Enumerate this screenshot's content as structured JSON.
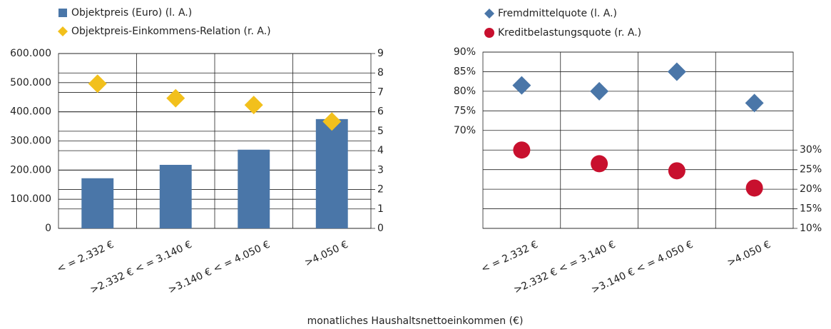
{
  "chart_data": [
    {
      "type": "combo",
      "categories": [
        "< = 2.332 €",
        ">2.332 € < = 3.140 €",
        ">3.140 € < = 4.050 €",
        ">4.050  €"
      ],
      "series": [
        {
          "name": "Objektpreis (Euro) (l. A.)",
          "type": "bar",
          "marker": "square",
          "color": "#4a76a8",
          "values": [
            172000,
            218000,
            270000,
            375000
          ]
        },
        {
          "name": "Objektpreis-Einkommens-Relation  (r. A.)",
          "type": "scatter",
          "marker": "diamond",
          "color": "#f2c01c",
          "axis": "y2",
          "values": [
            7.45,
            6.7,
            6.35,
            5.5
          ]
        }
      ],
      "ylim": [
        0,
        600000
      ],
      "yticks": [
        0,
        {
          "value": 100000,
          "label": "100.000"
        },
        {
          "value": 200000,
          "label": "200.000"
        },
        {
          "value": 300000,
          "label": "300.000"
        },
        {
          "value": 400000,
          "label": "400.000"
        },
        {
          "value": 500000,
          "label": "500.000"
        },
        {
          "value": 600000,
          "label": "600.000"
        }
      ],
      "y2lim": [
        0,
        9
      ],
      "y2ticks": [
        0,
        1,
        2,
        3,
        4,
        5,
        6,
        7,
        8,
        9
      ],
      "grid": true
    },
    {
      "type": "combo",
      "categories": [
        "< = 2.332 €",
        ">2.332 € < = 3.140 €",
        ">3.140 € < = 4.050 €",
        ">4.050  €"
      ],
      "series": [
        {
          "name": "Fremdmittelquote (l. A.)",
          "type": "scatter",
          "marker": "diamond",
          "color": "#4a76a8",
          "values": [
            81.5,
            80,
            85,
            77
          ]
        },
        {
          "name": "Kreditbelastungsquote (r. A.)",
          "type": "scatter",
          "marker": "circle",
          "color": "#c8102e",
          "axis": "y2",
          "values": [
            30,
            26.5,
            24.7,
            20.3
          ]
        }
      ],
      "ylim": [
        45,
        90
      ],
      "yticks": [
        {
          "value": 70,
          "label": "70%"
        },
        {
          "value": 75,
          "label": "75%"
        },
        {
          "value": 80,
          "label": "80%"
        },
        {
          "value": 85,
          "label": "85%"
        },
        {
          "value": 90,
          "label": "90%"
        }
      ],
      "y2lim": [
        10,
        55
      ],
      "y2ticks": [
        {
          "value": 10,
          "label": "10%"
        },
        {
          "value": 15,
          "label": "15%"
        },
        {
          "value": 20,
          "label": "20%"
        },
        {
          "value": 25,
          "label": "25%"
        },
        {
          "value": 30,
          "label": "30%"
        }
      ],
      "grid": true
    }
  ],
  "x_label": "monatliches Haushaltsnettoeinkommen (€)"
}
